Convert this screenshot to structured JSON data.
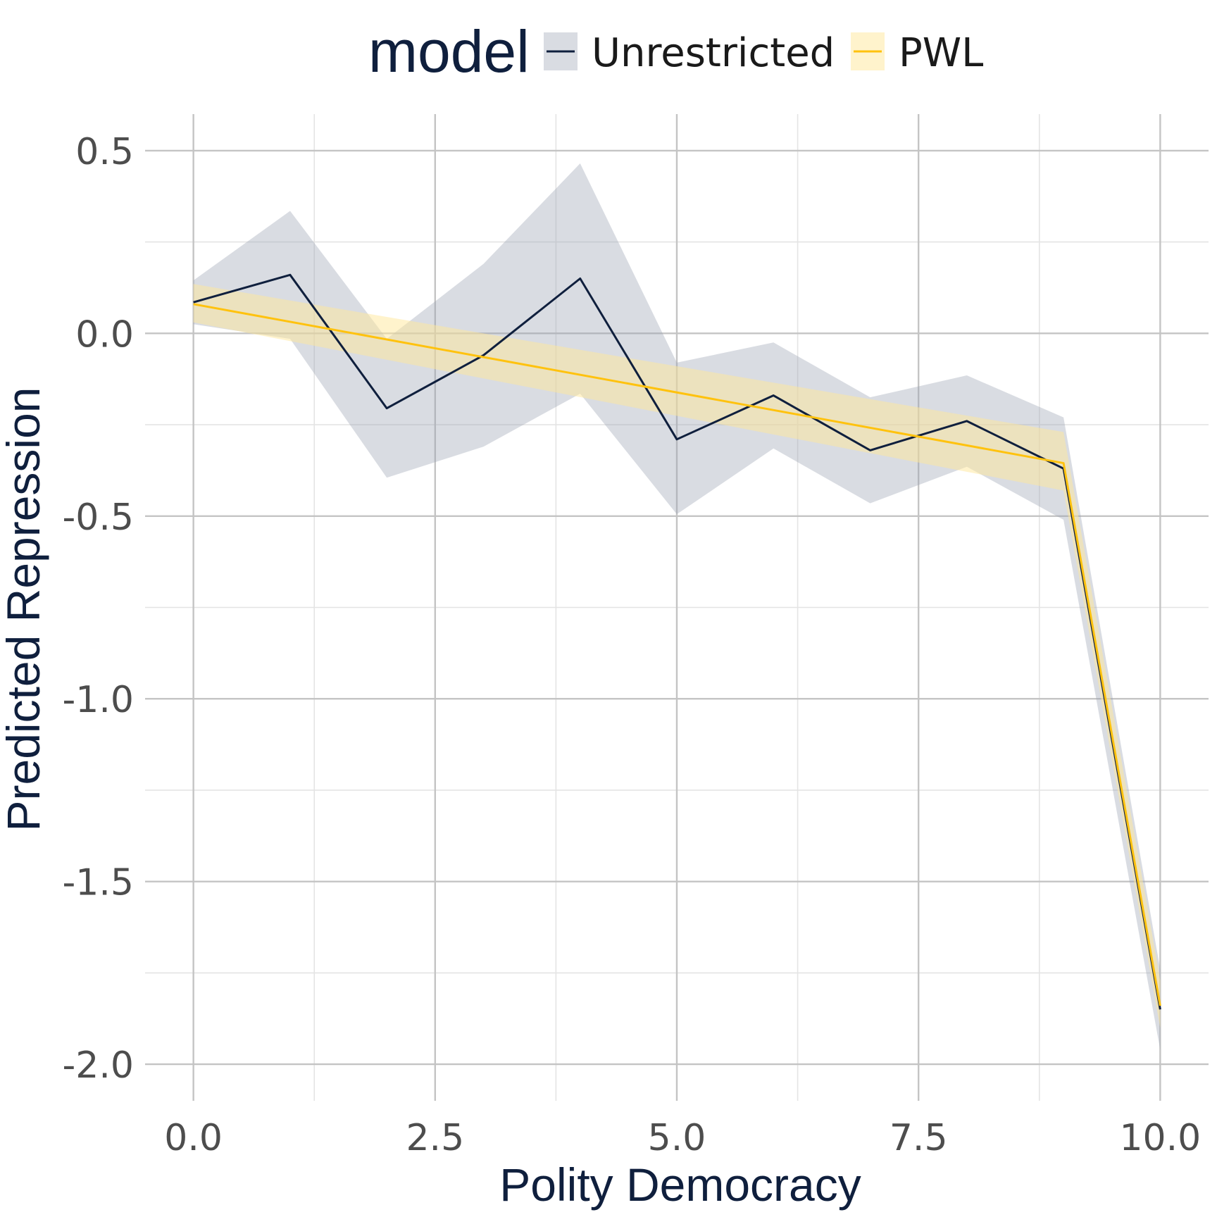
{
  "chart_data": {
    "type": "line",
    "xlabel": "Polity Democracy",
    "ylabel": "Predicted Repression",
    "xlim": [
      -0.5,
      10.5
    ],
    "ylim": [
      -2.1,
      0.6
    ],
    "x_ticks": [
      0.0,
      2.5,
      5.0,
      7.5,
      10.0
    ],
    "x_tick_labels": [
      "0.0",
      "2.5",
      "5.0",
      "7.5",
      "10.0"
    ],
    "y_ticks": [
      0.5,
      0.0,
      -0.5,
      -1.0,
      -1.5,
      -2.0
    ],
    "y_tick_labels": [
      "0.5",
      "0.0",
      "-0.5",
      "-1.0",
      "-1.5",
      "-2.0"
    ],
    "grid": true,
    "legend": {
      "title": "model",
      "placement": "top"
    },
    "series": [
      {
        "name": "Unrestricted",
        "color": "#0f1f3d",
        "band_color": "#9aa3b2",
        "x": [
          0,
          1,
          2,
          3,
          4,
          5,
          6,
          7,
          8,
          9,
          10
        ],
        "y": [
          0.085,
          0.16,
          -0.205,
          -0.06,
          0.15,
          -0.29,
          -0.17,
          -0.32,
          -0.24,
          -0.37,
          -1.85
        ],
        "lower": [
          0.025,
          -0.015,
          -0.395,
          -0.31,
          -0.165,
          -0.495,
          -0.315,
          -0.465,
          -0.365,
          -0.51,
          -1.96
        ],
        "upper": [
          0.145,
          0.335,
          -0.015,
          0.19,
          0.465,
          -0.08,
          -0.025,
          -0.175,
          -0.115,
          -0.23,
          -1.74
        ]
      },
      {
        "name": "PWL",
        "color": "#ffc20e",
        "band_color": "#ffe79a",
        "x": [
          0,
          9,
          10
        ],
        "y": [
          0.08,
          -0.355,
          -1.84
        ],
        "lower": [
          0.03,
          -0.43,
          -1.9
        ],
        "upper": [
          0.135,
          -0.27,
          -1.77
        ]
      }
    ]
  }
}
